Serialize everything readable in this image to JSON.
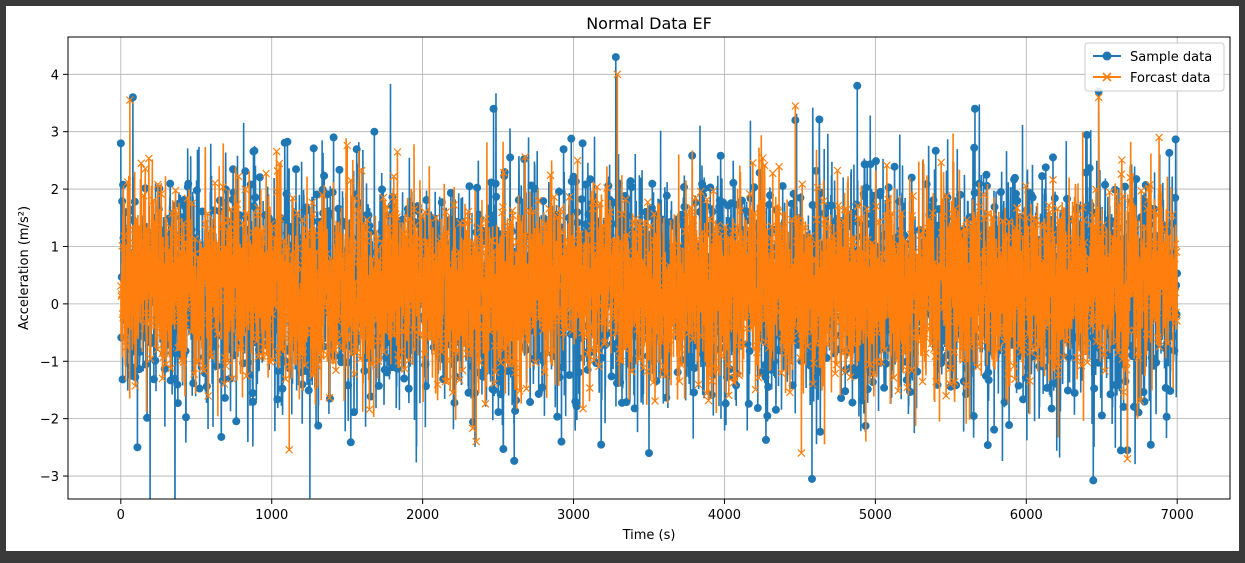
{
  "chart_data": {
    "type": "line",
    "title": "Normal Data EF",
    "xlabel": "Time (s)",
    "ylabel": "Acceleration (m/s²)",
    "xlim": [
      -350,
      7350
    ],
    "ylim": [
      -3.4,
      4.65
    ],
    "xticks": [
      0,
      1000,
      2000,
      3000,
      4000,
      5000,
      6000,
      7000
    ],
    "xtick_labels": [
      "0",
      "1000",
      "2000",
      "3000",
      "4000",
      "5000",
      "6000",
      "7000"
    ],
    "yticks": [
      -3,
      -2,
      -1,
      0,
      1,
      2,
      3,
      4
    ],
    "ytick_labels": [
      "−3",
      "−2",
      "−1",
      "0",
      "1",
      "2",
      "3",
      "4"
    ],
    "grid": true,
    "legend_position": "top-right",
    "n_points": 7000,
    "series": [
      {
        "name": "Sample data",
        "marker": "circle",
        "color": "#1f77b4",
        "approx_center": 0.3,
        "approx_spread": 0.9,
        "peaks": [
          {
            "x": 80,
            "y": 3.6
          },
          {
            "x": 110,
            "y": -2.5
          },
          {
            "x": 1410,
            "y": 2.9
          },
          {
            "x": 1680,
            "y": 3.0
          },
          {
            "x": 2470,
            "y": 3.4
          },
          {
            "x": 2920,
            "y": -2.4
          },
          {
            "x": 3280,
            "y": 4.3
          },
          {
            "x": 3500,
            "y": -2.6
          },
          {
            "x": 4470,
            "y": 3.2
          },
          {
            "x": 4580,
            "y": -3.05
          },
          {
            "x": 4880,
            "y": 3.8
          },
          {
            "x": 5660,
            "y": 3.4
          },
          {
            "x": 6480,
            "y": 3.7
          },
          {
            "x": 6670,
            "y": -2.55
          }
        ]
      },
      {
        "name": "Forcast data",
        "marker": "x",
        "color": "#ff7f0e",
        "approx_center": 0.3,
        "approx_spread": 0.75,
        "peaks": [
          {
            "x": 60,
            "y": 3.55
          },
          {
            "x": 3290,
            "y": 4.0
          },
          {
            "x": 4470,
            "y": 3.45
          },
          {
            "x": 4510,
            "y": -2.6
          },
          {
            "x": 6480,
            "y": 3.6
          },
          {
            "x": 6670,
            "y": -2.7
          },
          {
            "x": 6880,
            "y": 2.9
          }
        ]
      }
    ]
  }
}
